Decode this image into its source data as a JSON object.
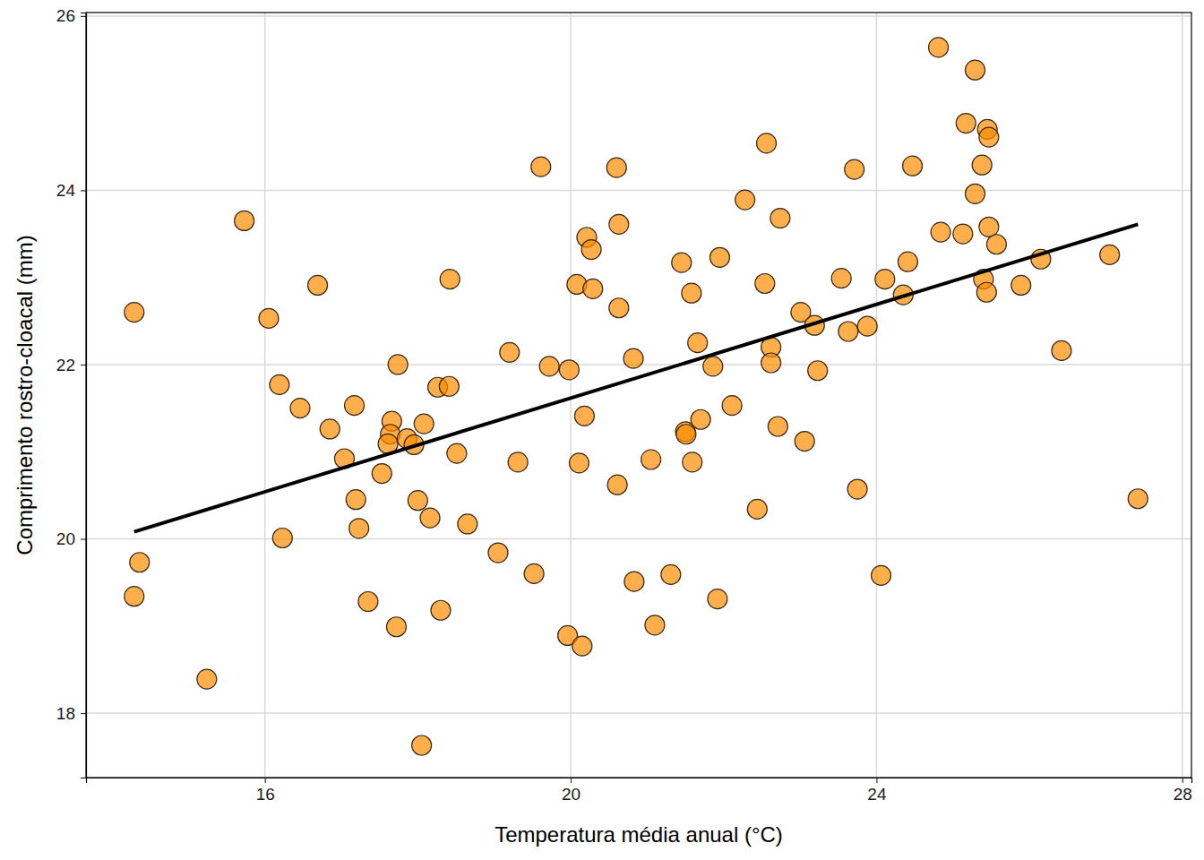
{
  "chart_data": {
    "type": "scatter",
    "x_label": "Temperatura média anual (°C)",
    "y_label": "Comprimento rostro-cloacal (mm)",
    "xlim": [
      13.66,
      28.12
    ],
    "ylim": [
      17.26,
      26.04
    ],
    "xticks": [
      16,
      20,
      24,
      28
    ],
    "yticks": [
      18,
      20,
      22,
      24,
      26
    ],
    "grid": true,
    "series": [
      {
        "type": "scatter",
        "marker": "circle",
        "color": "#ff8c00",
        "x": [
          14.29,
          14.36,
          14.29,
          15.24,
          15.73,
          16.05,
          16.19,
          16.23,
          16.46,
          16.69,
          16.85,
          17.04,
          17.17,
          17.19,
          17.23,
          17.35,
          17.53,
          17.66,
          17.64,
          17.61,
          17.72,
          17.74,
          17.86,
          17.95,
          18.0,
          18.05,
          18.08,
          18.16,
          18.26,
          18.3,
          18.41,
          18.42,
          18.51,
          18.65,
          19.05,
          19.2,
          19.31,
          19.52,
          19.61,
          19.72,
          19.96,
          19.98,
          20.08,
          20.11,
          20.15,
          20.18,
          20.21,
          20.27,
          20.29,
          20.6,
          20.61,
          20.63,
          20.63,
          20.82,
          20.83,
          21.05,
          21.1,
          21.31,
          21.45,
          21.5,
          21.51,
          21.58,
          21.59,
          21.66,
          21.7,
          21.86,
          21.92,
          21.95,
          22.11,
          22.28,
          22.44,
          22.54,
          22.56,
          22.62,
          22.62,
          22.71,
          22.74,
          23.01,
          23.06,
          23.19,
          23.23,
          23.54,
          23.63,
          23.71,
          23.75,
          23.88,
          24.06,
          24.11,
          24.35,
          24.41,
          24.47,
          24.81,
          24.84,
          25.13,
          25.17,
          25.29,
          25.29,
          25.38,
          25.4,
          25.44,
          25.45,
          25.47,
          25.47,
          25.57,
          25.89,
          26.15,
          26.42,
          27.05,
          27.42
        ],
        "values": [
          22.6,
          19.73,
          19.34,
          18.39,
          23.65,
          22.53,
          21.77,
          20.01,
          21.5,
          22.91,
          21.26,
          20.92,
          21.53,
          20.45,
          20.12,
          19.28,
          20.75,
          21.35,
          21.2,
          21.09,
          18.99,
          22.0,
          21.15,
          21.08,
          20.44,
          17.63,
          21.32,
          20.24,
          21.74,
          19.18,
          21.75,
          22.98,
          20.98,
          20.17,
          19.84,
          22.14,
          20.88,
          19.6,
          24.27,
          21.98,
          18.89,
          21.94,
          22.92,
          20.87,
          18.77,
          21.41,
          23.46,
          23.32,
          22.87,
          24.26,
          20.62,
          23.61,
          22.65,
          22.07,
          19.51,
          20.91,
          19.01,
          19.59,
          23.17,
          21.23,
          21.2,
          22.82,
          20.88,
          22.25,
          21.37,
          21.98,
          19.31,
          23.23,
          21.53,
          23.89,
          20.34,
          22.93,
          24.54,
          22.2,
          22.02,
          21.29,
          23.68,
          22.6,
          21.12,
          22.45,
          21.93,
          22.99,
          22.38,
          24.24,
          20.57,
          22.44,
          19.58,
          22.98,
          22.8,
          23.18,
          24.28,
          25.64,
          23.52,
          23.5,
          24.77,
          25.38,
          23.96,
          24.29,
          22.98,
          22.83,
          24.7,
          24.61,
          23.58,
          23.38,
          22.91,
          23.21,
          22.16,
          23.26,
          20.46
        ]
      },
      {
        "type": "line",
        "line_style": "solid",
        "color": "#000000",
        "x": [
          14.29,
          27.42
        ],
        "values": [
          20.08,
          23.61
        ]
      }
    ]
  }
}
